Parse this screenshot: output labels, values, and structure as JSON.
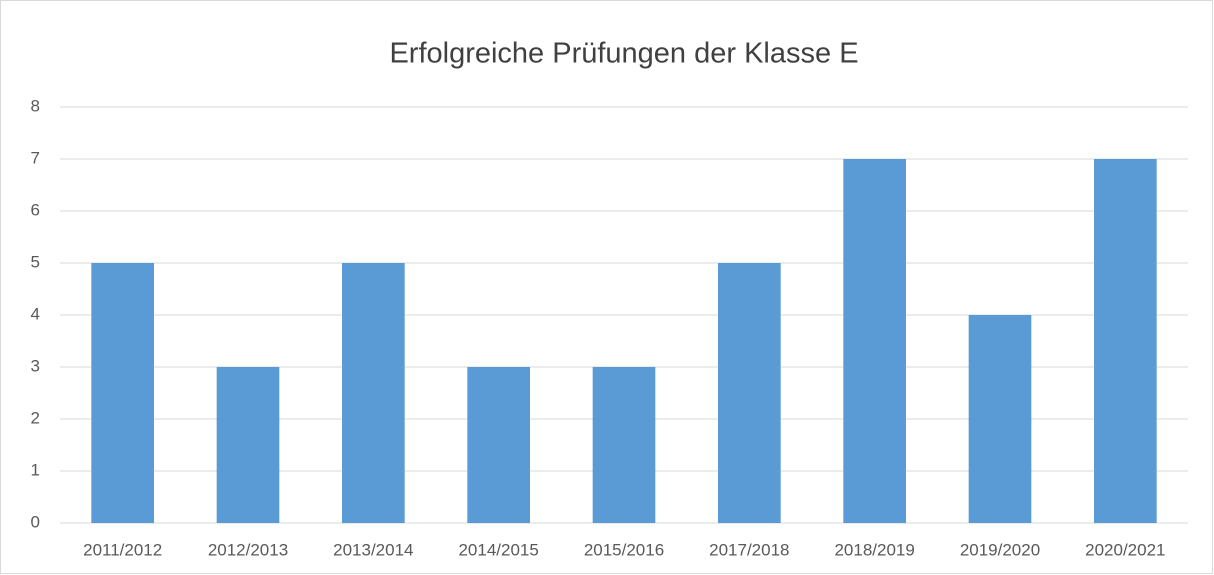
{
  "chart_data": {
    "type": "bar",
    "title": "Erfolgreiche Prüfungen der Klasse E",
    "categories": [
      "2011/2012",
      "2012/2013",
      "2013/2014",
      "2014/2015",
      "2015/2016",
      "2017/2018",
      "2018/2019",
      "2019/2020",
      "2020/2021"
    ],
    "values": [
      5,
      3,
      5,
      3,
      3,
      5,
      7,
      4,
      7
    ],
    "color": "#5b9bd5",
    "ylim": [
      0,
      8
    ],
    "yticks": [
      0,
      1,
      2,
      3,
      4,
      5,
      6,
      7,
      8
    ],
    "grid": true
  }
}
